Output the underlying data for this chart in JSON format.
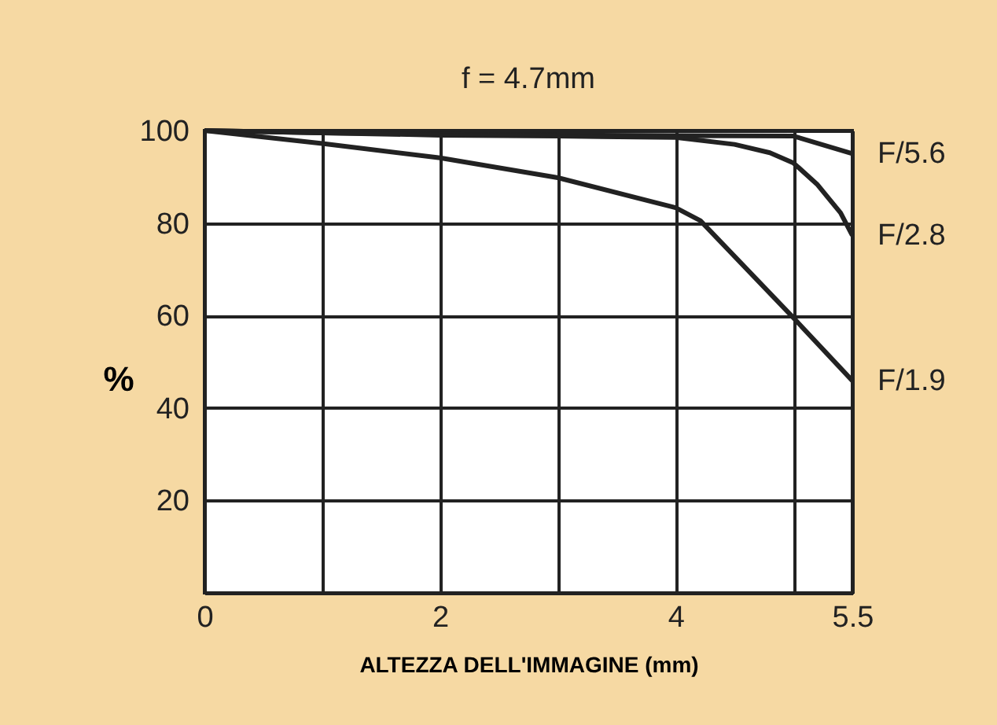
{
  "chart_data": {
    "type": "line",
    "title": "f = 4.7mm",
    "xlabel": "ALTEZZA DELL'IMMAGINE (mm)",
    "ylabel": "%",
    "xlim": [
      0,
      5.5
    ],
    "ylim": [
      0,
      100
    ],
    "xticks": [
      0,
      {
        "value": 1,
        "label": null
      },
      2,
      {
        "value": 3,
        "label": null
      },
      4,
      {
        "value": 5,
        "label": null
      },
      5.5
    ],
    "yticks": [
      {
        "value": 0,
        "label": null
      },
      20,
      40,
      60,
      80,
      100
    ],
    "grid": true,
    "legend": false,
    "marker": "none",
    "line_style": "solid",
    "series": [
      {
        "name": "F/5.6",
        "color": "#222222",
        "x": [
          0,
          1,
          2,
          3,
          4,
          5,
          5.5
        ],
        "values": [
          100,
          99.5,
          99.2,
          99,
          98.9,
          98.8,
          95
        ]
      },
      {
        "name": "F/2.8",
        "color": "#222222",
        "x": [
          0,
          1,
          2,
          3,
          4,
          4.5,
          4.8,
          5,
          5.2,
          5.4,
          5.5
        ],
        "values": [
          100,
          99.5,
          99,
          98.8,
          98.5,
          97,
          95.2,
          93,
          88.4,
          82.2,
          77.3
        ]
      },
      {
        "name": "F/1.9",
        "color": "#222222",
        "x": [
          0,
          1,
          2,
          3,
          4,
          4.21,
          5,
          5.5
        ],
        "values": [
          100,
          97.2,
          94.1,
          89.8,
          83.3,
          80.5,
          59.5,
          45.9
        ]
      }
    ]
  }
}
